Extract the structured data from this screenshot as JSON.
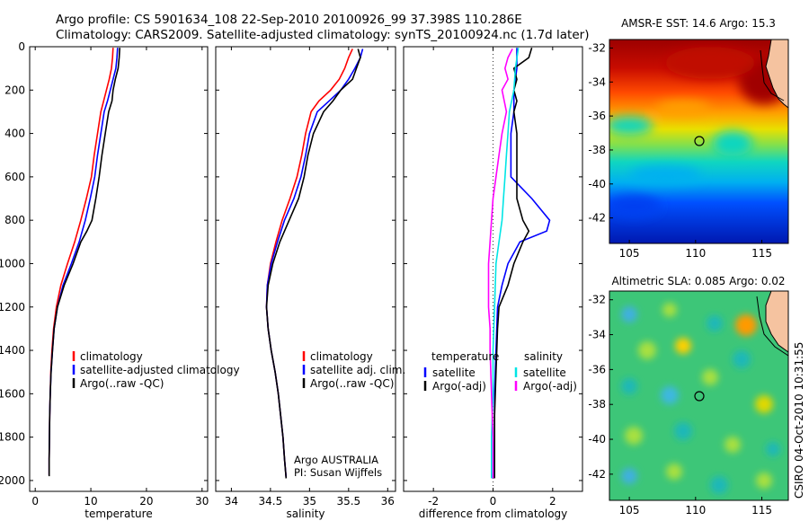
{
  "header": {
    "line1": "Argo profile: CS 5901634_108 22-Sep-2010 20100926_99 37.398S 110.286E",
    "line2": "Climatology: CARS2009. Satellite-adjusted climatology: synTS_20100924.nc (1.7d later)"
  },
  "side_label": "CSIRO 04-Oct-2010 10:31:55",
  "chart_data": [
    {
      "type": "line",
      "xlabel": "temperature",
      "ylabel": "",
      "xlim": [
        -1,
        31
      ],
      "ylim": [
        2050,
        0
      ],
      "y_inverted": true,
      "x_ticks": [
        0,
        10,
        20,
        30
      ],
      "y_ticks": [
        0,
        200,
        400,
        600,
        800,
        1000,
        1200,
        1400,
        1600,
        1800,
        2000
      ],
      "legend": {
        "position": "lower-middle",
        "items": [
          "climatology",
          "satellite-adjusted climatology",
          "Argo(..raw -QC)"
        ]
      },
      "series": [
        {
          "name": "climatology",
          "color": "#ff0000",
          "points": [
            [
              14.0,
              5
            ],
            [
              13.9,
              50
            ],
            [
              13.7,
              100
            ],
            [
              13.3,
              150
            ],
            [
              12.8,
              200
            ],
            [
              12.3,
              250
            ],
            [
              11.8,
              300
            ],
            [
              11.2,
              400
            ],
            [
              10.6,
              500
            ],
            [
              10.1,
              600
            ],
            [
              9.2,
              700
            ],
            [
              8.2,
              800
            ],
            [
              7.1,
              900
            ],
            [
              5.8,
              1000
            ],
            [
              4.6,
              1100
            ],
            [
              3.8,
              1200
            ],
            [
              3.3,
              1300
            ],
            [
              3.0,
              1400
            ],
            [
              2.8,
              1500
            ],
            [
              2.7,
              1600
            ],
            [
              2.6,
              1700
            ],
            [
              2.55,
              1800
            ],
            [
              2.5,
              1900
            ],
            [
              2.5,
              1975
            ]
          ]
        },
        {
          "name": "satellite-adjusted climatology",
          "color": "#0000ff",
          "points": [
            [
              14.8,
              5
            ],
            [
              14.7,
              50
            ],
            [
              14.5,
              100
            ],
            [
              14.0,
              150
            ],
            [
              13.5,
              200
            ],
            [
              13.0,
              250
            ],
            [
              12.4,
              300
            ],
            [
              11.8,
              400
            ],
            [
              11.2,
              500
            ],
            [
              10.7,
              600
            ],
            [
              9.9,
              700
            ],
            [
              9.0,
              800
            ],
            [
              7.9,
              900
            ],
            [
              6.5,
              1000
            ],
            [
              5.0,
              1100
            ],
            [
              4.0,
              1200
            ],
            [
              3.4,
              1300
            ],
            [
              3.1,
              1400
            ],
            [
              2.85,
              1500
            ],
            [
              2.7,
              1600
            ],
            [
              2.6,
              1700
            ],
            [
              2.55,
              1800
            ],
            [
              2.5,
              1900
            ],
            [
              2.5,
              1975
            ]
          ]
        },
        {
          "name": "Argo(..raw -QC)",
          "color": "#000000",
          "points": [
            [
              15.2,
              5
            ],
            [
              15.1,
              50
            ],
            [
              14.9,
              100
            ],
            [
              14.4,
              150
            ],
            [
              14.0,
              200
            ],
            [
              13.8,
              250
            ],
            [
              13.2,
              300
            ],
            [
              12.6,
              400
            ],
            [
              12.0,
              500
            ],
            [
              11.5,
              600
            ],
            [
              10.9,
              700
            ],
            [
              10.2,
              800
            ],
            [
              9.3,
              850
            ],
            [
              8.2,
              900
            ],
            [
              6.8,
              1000
            ],
            [
              5.2,
              1100
            ],
            [
              4.0,
              1200
            ],
            [
              3.4,
              1300
            ],
            [
              3.1,
              1400
            ],
            [
              2.85,
              1500
            ],
            [
              2.7,
              1600
            ],
            [
              2.6,
              1700
            ],
            [
              2.55,
              1800
            ],
            [
              2.5,
              1900
            ],
            [
              2.5,
              1980
            ]
          ]
        }
      ]
    },
    {
      "type": "line",
      "xlabel": "salinity",
      "ylabel": "",
      "xlim": [
        33.8,
        36.1
      ],
      "ylim": [
        2050,
        0
      ],
      "y_inverted": true,
      "x_ticks": [
        34,
        34.5,
        35,
        35.5,
        36
      ],
      "x_tick_labels": [
        "34",
        "34.5",
        "35",
        "35.5",
        "36"
      ],
      "legend": {
        "position": "lower-middle",
        "items": [
          "climatology",
          "satellite adj. clim.",
          "Argo(..raw -QC)"
        ]
      },
      "annotations": [
        "Argo AUSTRALIA",
        "PI: Susan Wijffels"
      ],
      "series": [
        {
          "name": "climatology",
          "color": "#ff0000",
          "points": [
            [
              35.55,
              10
            ],
            [
              35.5,
              50
            ],
            [
              35.45,
              100
            ],
            [
              35.38,
              150
            ],
            [
              35.27,
              200
            ],
            [
              35.12,
              250
            ],
            [
              35.02,
              300
            ],
            [
              34.95,
              400
            ],
            [
              34.9,
              500
            ],
            [
              34.84,
              600
            ],
            [
              34.75,
              700
            ],
            [
              34.65,
              800
            ],
            [
              34.57,
              900
            ],
            [
              34.5,
              1000
            ],
            [
              34.46,
              1100
            ],
            [
              34.45,
              1200
            ],
            [
              34.47,
              1300
            ],
            [
              34.51,
              1400
            ],
            [
              34.56,
              1500
            ],
            [
              34.6,
              1600
            ],
            [
              34.63,
              1700
            ],
            [
              34.66,
              1800
            ],
            [
              34.68,
              1900
            ],
            [
              34.7,
              1985
            ]
          ]
        },
        {
          "name": "satellite adj. clim.",
          "color": "#0000ff",
          "points": [
            [
              35.68,
              10
            ],
            [
              35.65,
              50
            ],
            [
              35.58,
              100
            ],
            [
              35.5,
              150
            ],
            [
              35.4,
              200
            ],
            [
              35.25,
              250
            ],
            [
              35.1,
              300
            ],
            [
              35.0,
              400
            ],
            [
              34.95,
              500
            ],
            [
              34.89,
              600
            ],
            [
              34.8,
              700
            ],
            [
              34.68,
              800
            ],
            [
              34.59,
              900
            ],
            [
              34.51,
              1000
            ],
            [
              34.46,
              1100
            ],
            [
              34.45,
              1200
            ],
            [
              34.47,
              1300
            ],
            [
              34.51,
              1400
            ],
            [
              34.56,
              1500
            ],
            [
              34.6,
              1600
            ],
            [
              34.63,
              1700
            ],
            [
              34.66,
              1800
            ],
            [
              34.68,
              1900
            ],
            [
              34.7,
              1985
            ]
          ]
        },
        {
          "name": "Argo(..raw -QC)",
          "color": "#000000",
          "points": [
            [
              35.62,
              10
            ],
            [
              35.65,
              50
            ],
            [
              35.6,
              100
            ],
            [
              35.55,
              150
            ],
            [
              35.4,
              200
            ],
            [
              35.3,
              250
            ],
            [
              35.18,
              300
            ],
            [
              35.05,
              400
            ],
            [
              34.98,
              500
            ],
            [
              34.93,
              600
            ],
            [
              34.86,
              700
            ],
            [
              34.74,
              800
            ],
            [
              34.62,
              900
            ],
            [
              34.53,
              1000
            ],
            [
              34.47,
              1100
            ],
            [
              34.45,
              1200
            ],
            [
              34.47,
              1300
            ],
            [
              34.51,
              1400
            ],
            [
              34.56,
              1500
            ],
            [
              34.6,
              1600
            ],
            [
              34.63,
              1700
            ],
            [
              34.66,
              1800
            ],
            [
              34.68,
              1900
            ],
            [
              34.7,
              1990
            ]
          ]
        }
      ]
    },
    {
      "type": "line",
      "xlabel": "difference from climatology",
      "ylabel": "",
      "xlim": [
        -3,
        3
      ],
      "ylim": [
        2050,
        0
      ],
      "y_inverted": true,
      "x_ticks": [
        -2,
        0,
        2
      ],
      "reference_line_x": 0,
      "legend": {
        "position": "lower-middle",
        "columns": [
          {
            "heading": "temperature",
            "items": [
              "satellite",
              "Argo(-adj)"
            ]
          },
          {
            "heading": "salinity",
            "items": [
              "satellite",
              "Argo(-adj)"
            ]
          }
        ]
      },
      "series": [
        {
          "name": "temperature satellite",
          "color": "#0000ff",
          "points": [
            [
              0.8,
              5
            ],
            [
              0.8,
              100
            ],
            [
              0.7,
              200
            ],
            [
              0.7,
              300
            ],
            [
              0.6,
              400
            ],
            [
              0.6,
              500
            ],
            [
              0.6,
              600
            ],
            [
              1.3,
              700
            ],
            [
              1.9,
              800
            ],
            [
              1.8,
              850
            ],
            [
              0.9,
              900
            ],
            [
              0.5,
              1000
            ],
            [
              0.3,
              1100
            ],
            [
              0.15,
              1200
            ],
            [
              0.1,
              1400
            ],
            [
              0.05,
              1600
            ],
            [
              0.05,
              1800
            ],
            [
              0.0,
              1990
            ]
          ]
        },
        {
          "name": "temperature Argo(-adj)",
          "color": "#000000",
          "points": [
            [
              1.3,
              5
            ],
            [
              1.2,
              50
            ],
            [
              0.7,
              100
            ],
            [
              0.8,
              150
            ],
            [
              0.7,
              200
            ],
            [
              0.8,
              250
            ],
            [
              0.7,
              300
            ],
            [
              0.8,
              400
            ],
            [
              0.8,
              500
            ],
            [
              0.8,
              600
            ],
            [
              0.8,
              700
            ],
            [
              1.0,
              800
            ],
            [
              1.2,
              850
            ],
            [
              1.0,
              900
            ],
            [
              0.7,
              1000
            ],
            [
              0.5,
              1100
            ],
            [
              0.2,
              1200
            ],
            [
              0.15,
              1300
            ],
            [
              0.1,
              1500
            ],
            [
              0.05,
              1700
            ],
            [
              0.05,
              1990
            ]
          ]
        },
        {
          "name": "salinity satellite",
          "color": "#00e5e5",
          "points": [
            [
              0.85,
              5
            ],
            [
              0.75,
              100
            ],
            [
              0.7,
              200
            ],
            [
              0.55,
              300
            ],
            [
              0.5,
              400
            ],
            [
              0.45,
              500
            ],
            [
              0.4,
              600
            ],
            [
              0.35,
              700
            ],
            [
              0.3,
              800
            ],
            [
              0.2,
              900
            ],
            [
              0.1,
              1000
            ],
            [
              0.05,
              1200
            ],
            [
              0.0,
              1400
            ],
            [
              0.0,
              1600
            ],
            [
              -0.05,
              1800
            ],
            [
              -0.05,
              1990
            ]
          ]
        },
        {
          "name": "salinity Argo(-adj)",
          "color": "#ff00ff",
          "points": [
            [
              0.65,
              10
            ],
            [
              0.5,
              50
            ],
            [
              0.4,
              100
            ],
            [
              0.5,
              150
            ],
            [
              0.3,
              200
            ],
            [
              0.45,
              300
            ],
            [
              0.3,
              400
            ],
            [
              0.2,
              500
            ],
            [
              0.1,
              600
            ],
            [
              0.0,
              700
            ],
            [
              -0.05,
              800
            ],
            [
              -0.1,
              900
            ],
            [
              -0.15,
              1000
            ],
            [
              -0.15,
              1100
            ],
            [
              -0.15,
              1200
            ],
            [
              -0.1,
              1300
            ],
            [
              -0.1,
              1400
            ],
            [
              -0.05,
              1600
            ],
            [
              0.0,
              1800
            ],
            [
              0.0,
              1990
            ]
          ]
        }
      ]
    },
    {
      "type": "heatmap",
      "title": "AMSR-E SST: 14.6 Argo: 15.3",
      "xlim": [
        103.5,
        117
      ],
      "ylim": [
        -43.5,
        -31.5
      ],
      "x_ticks": [
        105,
        110,
        115
      ],
      "y_ticks": [
        -32,
        -34,
        -36,
        -38,
        -40,
        -42
      ],
      "marker": {
        "lon": 110.286,
        "lat": -37.398
      },
      "colormap": "jet",
      "colorbar": false
    },
    {
      "type": "heatmap",
      "title": "Altimetric SLA: 0.085 Argo: 0.02",
      "xlim": [
        103.5,
        117
      ],
      "ylim": [
        -43.5,
        -31.5
      ],
      "x_ticks": [
        105,
        110,
        115
      ],
      "y_ticks": [
        -32,
        -34,
        -36,
        -38,
        -40,
        -42
      ],
      "marker": {
        "lon": 110.286,
        "lat": -37.398
      },
      "colormap": "jet",
      "colorbar": false
    }
  ]
}
